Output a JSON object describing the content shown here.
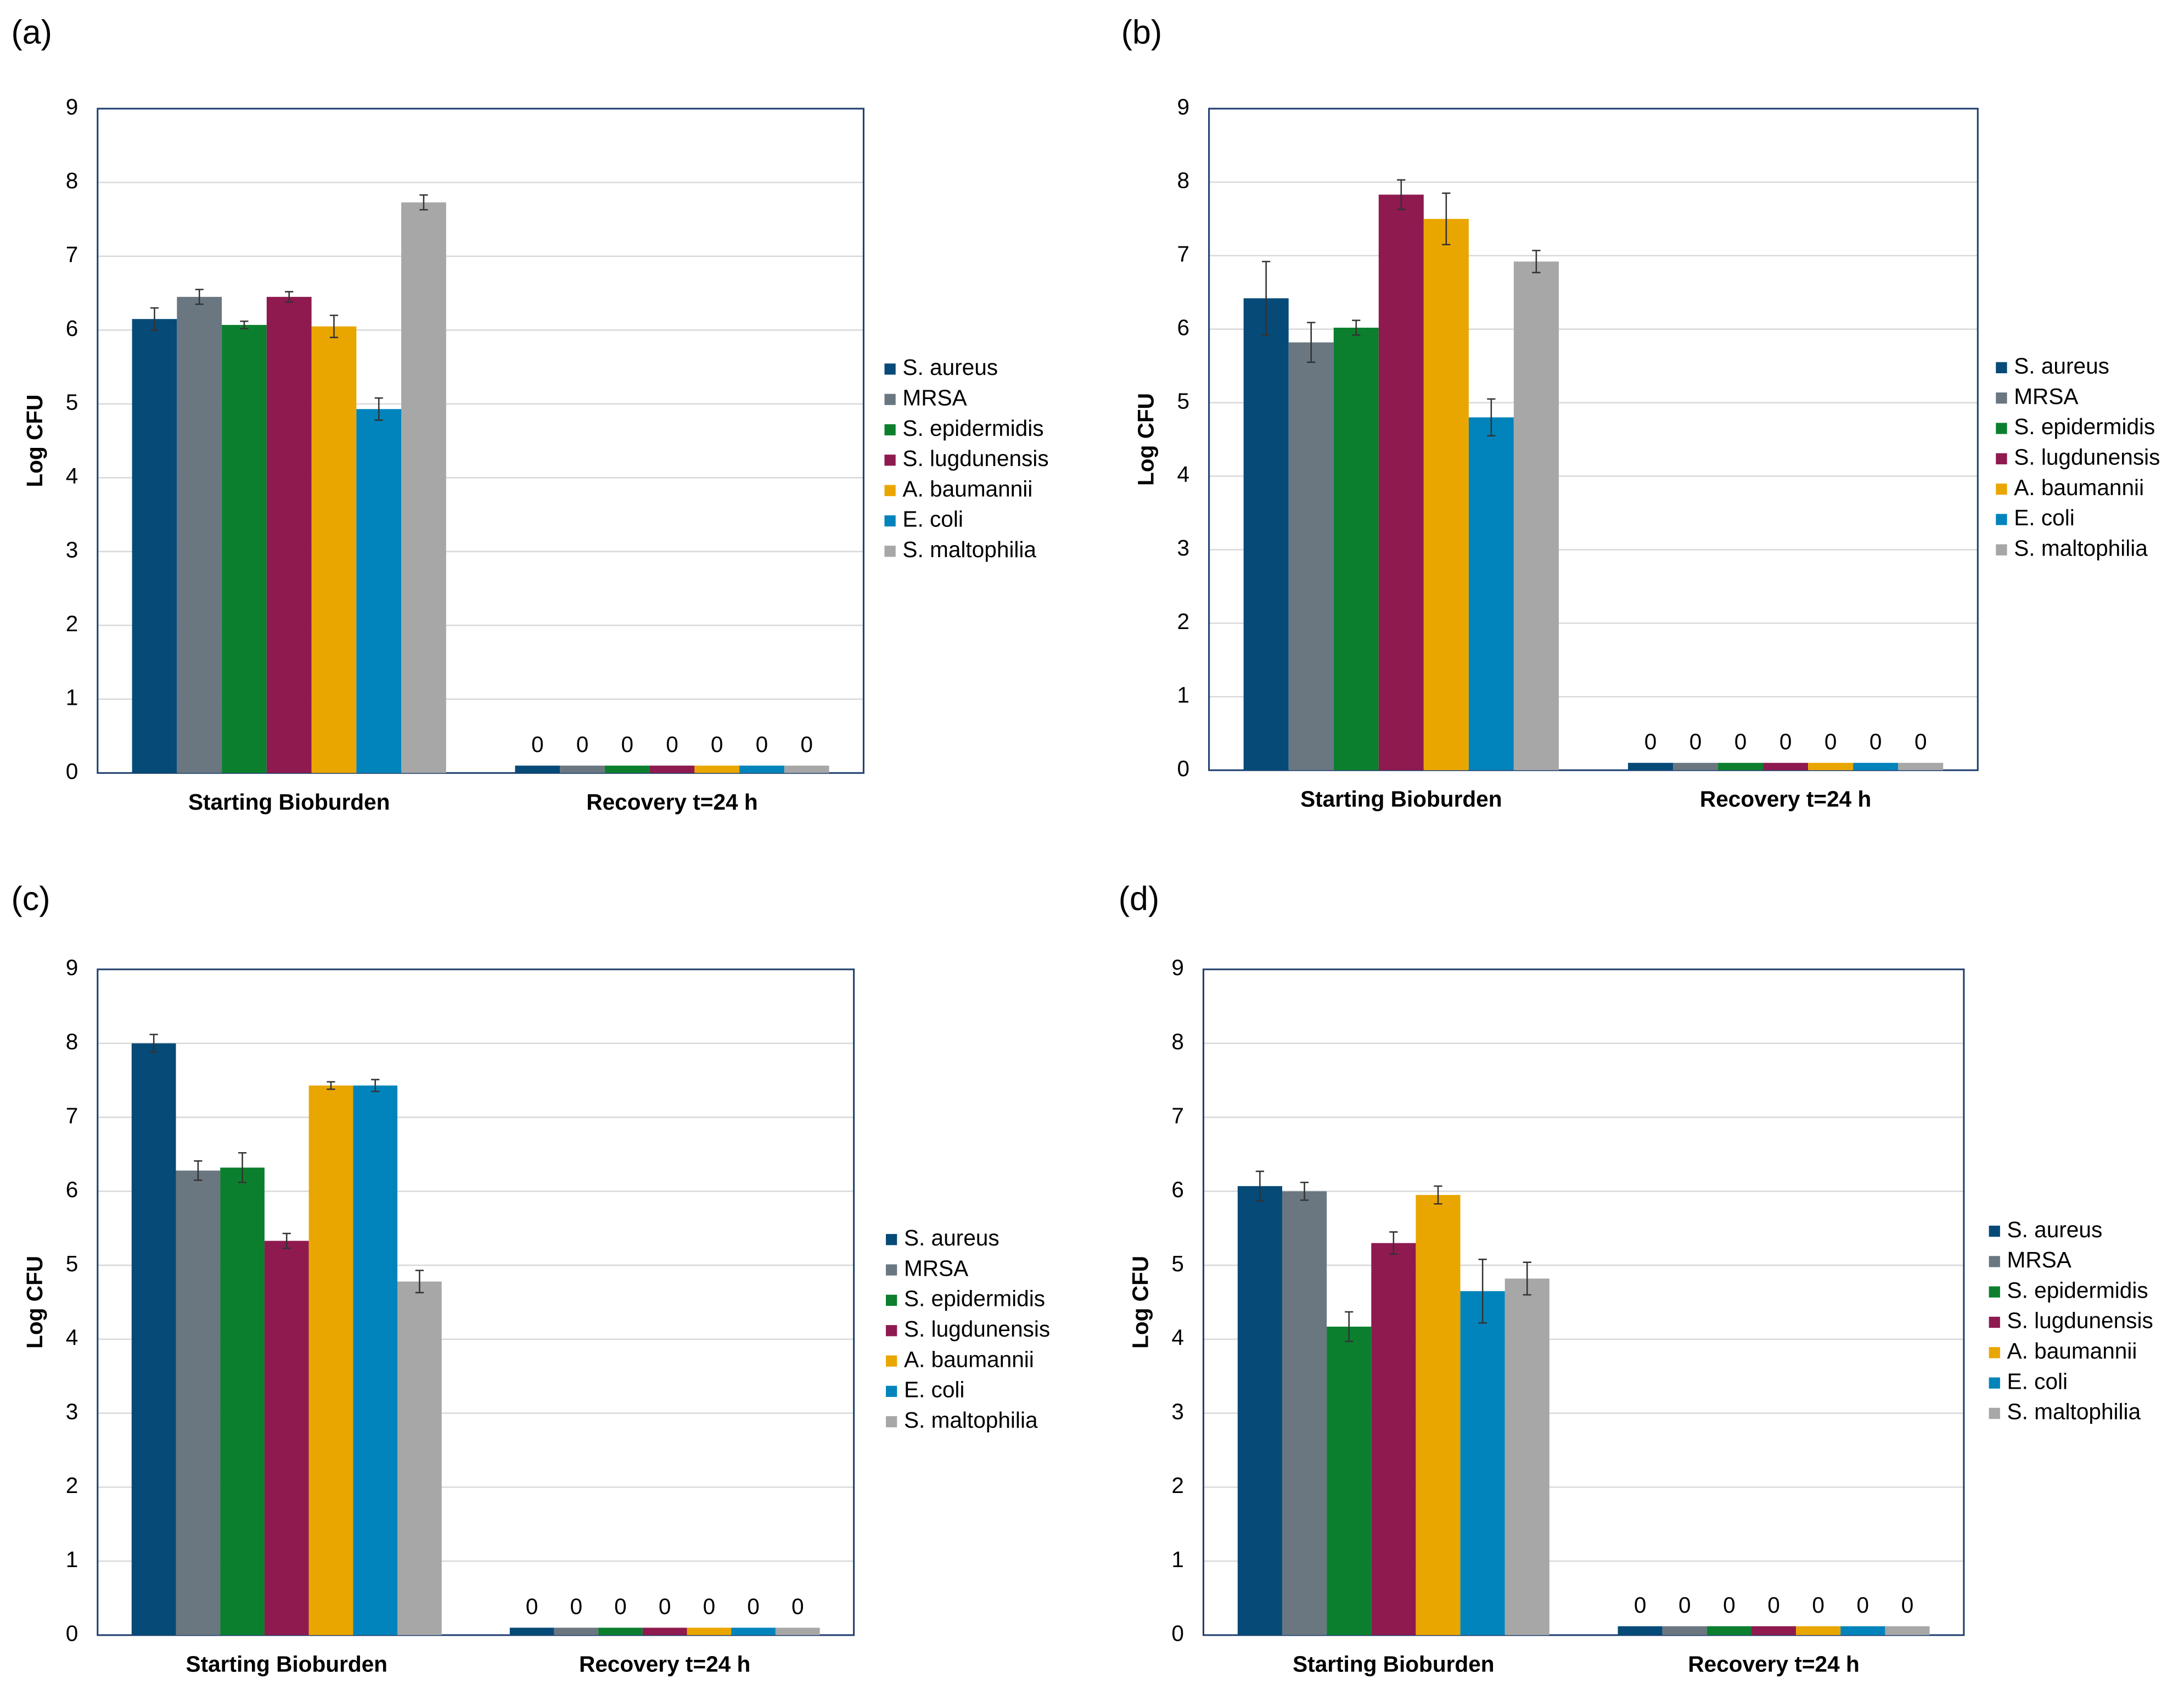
{
  "chart_data": [
    {
      "type": "bar",
      "panel_label": "(a)",
      "y_label": "Log CFU",
      "categories": [
        "Starting Bioburden",
        "Recovery t=24 h"
      ],
      "ylim": [
        0,
        9
      ],
      "yticks": [
        0,
        1,
        2,
        3,
        4,
        5,
        6,
        7,
        8,
        9
      ],
      "grid": true,
      "series": [
        {
          "name": "S. aureus",
          "color": "#064a78",
          "values": [
            6.15,
            0.1
          ],
          "errors": [
            0.15,
            0
          ],
          "value_labels": [
            null,
            "0"
          ]
        },
        {
          "name": "MRSA",
          "color": "#6a7781",
          "values": [
            6.45,
            0.1
          ],
          "errors": [
            0.1,
            0
          ],
          "value_labels": [
            null,
            "0"
          ]
        },
        {
          "name": "S. epidermidis",
          "color": "#0b7f2e",
          "values": [
            6.07,
            0.1
          ],
          "errors": [
            0.05,
            0
          ],
          "value_labels": [
            null,
            "0"
          ]
        },
        {
          "name": "S. lugdunensis",
          "color": "#8e1a4f",
          "values": [
            6.45,
            0.1
          ],
          "errors": [
            0.07,
            0
          ],
          "value_labels": [
            null,
            "0"
          ]
        },
        {
          "name": "A. baumannii",
          "color": "#eaa600",
          "values": [
            6.05,
            0.1
          ],
          "errors": [
            0.15,
            0
          ],
          "value_labels": [
            null,
            "0"
          ]
        },
        {
          "name": "E. coli",
          "color": "#0084bb",
          "values": [
            4.93,
            0.1
          ],
          "errors": [
            0.15,
            0
          ],
          "value_labels": [
            null,
            "0"
          ]
        },
        {
          "name": "S. maltophilia",
          "color": "#a7a7a7",
          "values": [
            7.73,
            0.1
          ],
          "errors": [
            0.1,
            0
          ],
          "value_labels": [
            null,
            "0"
          ]
        }
      ]
    },
    {
      "type": "bar",
      "panel_label": "(b)",
      "y_label": "Log CFU",
      "categories": [
        "Starting Bioburden",
        "Recovery t=24 h"
      ],
      "ylim": [
        0,
        9
      ],
      "yticks": [
        0,
        1,
        2,
        3,
        4,
        5,
        6,
        7,
        8,
        9
      ],
      "grid": true,
      "series": [
        {
          "name": "S. aureus",
          "color": "#064a78",
          "values": [
            6.42,
            0.1
          ],
          "errors": [
            0.5,
            0
          ],
          "value_labels": [
            null,
            "0"
          ]
        },
        {
          "name": "MRSA",
          "color": "#6a7781",
          "values": [
            5.82,
            0.1
          ],
          "errors": [
            0.27,
            0
          ],
          "value_labels": [
            null,
            "0"
          ]
        },
        {
          "name": "S. epidermidis",
          "color": "#0b7f2e",
          "values": [
            6.02,
            0.1
          ],
          "errors": [
            0.1,
            0
          ],
          "value_labels": [
            null,
            "0"
          ]
        },
        {
          "name": "S. lugdunensis",
          "color": "#8e1a4f",
          "values": [
            7.83,
            0.1
          ],
          "errors": [
            0.2,
            0
          ],
          "value_labels": [
            null,
            "0"
          ]
        },
        {
          "name": "A. baumannii",
          "color": "#eaa600",
          "values": [
            7.5,
            0.1
          ],
          "errors": [
            0.35,
            0
          ],
          "value_labels": [
            null,
            "0"
          ]
        },
        {
          "name": "E. coli",
          "color": "#0084bb",
          "values": [
            4.8,
            0.1
          ],
          "errors": [
            0.25,
            0
          ],
          "value_labels": [
            null,
            "0"
          ]
        },
        {
          "name": "S. maltophilia",
          "color": "#a7a7a7",
          "values": [
            6.92,
            0.1
          ],
          "errors": [
            0.15,
            0
          ],
          "value_labels": [
            null,
            "0"
          ]
        }
      ]
    },
    {
      "type": "bar",
      "panel_label": "(c)",
      "y_label": "Log CFU",
      "categories": [
        "Starting Bioburden",
        "Recovery t=24 h"
      ],
      "ylim": [
        0,
        9
      ],
      "yticks": [
        0,
        1,
        2,
        3,
        4,
        5,
        6,
        7,
        8,
        9
      ],
      "grid": true,
      "series": [
        {
          "name": "S. aureus",
          "color": "#064a78",
          "values": [
            8.0,
            0.1
          ],
          "errors": [
            0.12,
            0
          ],
          "value_labels": [
            null,
            "0"
          ]
        },
        {
          "name": "MRSA",
          "color": "#6a7781",
          "values": [
            6.28,
            0.1
          ],
          "errors": [
            0.13,
            0
          ],
          "value_labels": [
            null,
            "0"
          ]
        },
        {
          "name": "S. epidermidis",
          "color": "#0b7f2e",
          "values": [
            6.32,
            0.1
          ],
          "errors": [
            0.2,
            0
          ],
          "value_labels": [
            null,
            "0"
          ]
        },
        {
          "name": "S. lugdunensis",
          "color": "#8e1a4f",
          "values": [
            5.33,
            0.1
          ],
          "errors": [
            0.1,
            0
          ],
          "value_labels": [
            null,
            "0"
          ]
        },
        {
          "name": "A. baumannii",
          "color": "#eaa600",
          "values": [
            7.43,
            0.1
          ],
          "errors": [
            0.05,
            0
          ],
          "value_labels": [
            null,
            "0"
          ]
        },
        {
          "name": "E. coli",
          "color": "#0084bb",
          "values": [
            7.43,
            0.1
          ],
          "errors": [
            0.08,
            0
          ],
          "value_labels": [
            null,
            "0"
          ]
        },
        {
          "name": "S. maltophilia",
          "color": "#a7a7a7",
          "values": [
            4.78,
            0.1
          ],
          "errors": [
            0.15,
            0
          ],
          "value_labels": [
            null,
            "0"
          ]
        }
      ]
    },
    {
      "type": "bar",
      "panel_label": "(d)",
      "y_label": "Log CFU",
      "categories": [
        "Starting Bioburden",
        "Recovery t=24 h"
      ],
      "ylim": [
        0,
        9
      ],
      "yticks": [
        0,
        1,
        2,
        3,
        4,
        5,
        6,
        7,
        8,
        9
      ],
      "grid": true,
      "series": [
        {
          "name": "S. aureus",
          "color": "#064a78",
          "values": [
            6.07,
            0.12
          ],
          "errors": [
            0.2,
            0
          ],
          "value_labels": [
            null,
            "0"
          ]
        },
        {
          "name": "MRSA",
          "color": "#6a7781",
          "values": [
            6.0,
            0.12
          ],
          "errors": [
            0.12,
            0
          ],
          "value_labels": [
            null,
            "0"
          ]
        },
        {
          "name": "S. epidermidis",
          "color": "#0b7f2e",
          "values": [
            4.17,
            0.12
          ],
          "errors": [
            0.2,
            0
          ],
          "value_labels": [
            null,
            "0"
          ]
        },
        {
          "name": "S. lugdunensis",
          "color": "#8e1a4f",
          "values": [
            5.3,
            0.12
          ],
          "errors": [
            0.15,
            0
          ],
          "value_labels": [
            null,
            "0"
          ]
        },
        {
          "name": "A. baumannii",
          "color": "#eaa600",
          "values": [
            5.95,
            0.12
          ],
          "errors": [
            0.12,
            0
          ],
          "value_labels": [
            null,
            "0"
          ]
        },
        {
          "name": "E. coli",
          "color": "#0084bb",
          "values": [
            4.65,
            0.12
          ],
          "errors": [
            0.43,
            0
          ],
          "value_labels": [
            null,
            "0"
          ]
        },
        {
          "name": "S. maltophilia",
          "color": "#a7a7a7",
          "values": [
            4.82,
            0.12
          ],
          "errors": [
            0.22,
            0
          ],
          "value_labels": [
            null,
            "0"
          ]
        }
      ]
    }
  ]
}
